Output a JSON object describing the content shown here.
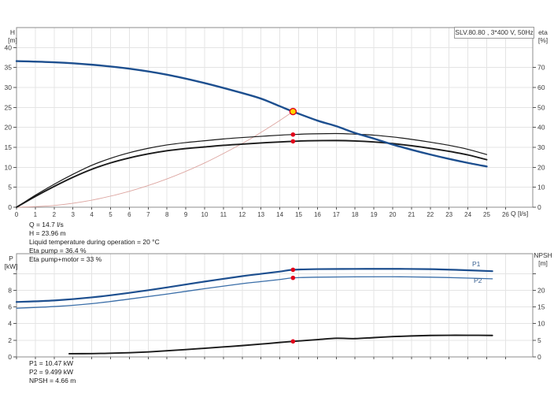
{
  "title_box": "SLV.80.80 , 3*400 V, 50Hz",
  "labels": {
    "h_axis": [
      "H",
      "[m]"
    ],
    "eta_axis": [
      "eta",
      "[%]"
    ],
    "q_axis": "Q [l/s]",
    "p_axis": [
      "P",
      "[kW]"
    ],
    "npsh_axis": [
      "NPSH",
      "[m]"
    ],
    "p1": "P1",
    "p2": "P2"
  },
  "info_top": [
    "Q = 14.7 l/s",
    "H = 23.96 m",
    "Liquid temperature during operation = 20 °C",
    "Eta pump = 36.4 %",
    "Eta pump+motor = 33 %"
  ],
  "info_bottom": [
    "P1 = 10.47 kW",
    "P2 = 9.499 kW",
    "NPSH = 4.66 m"
  ],
  "colors": {
    "pump_blue": "#1d4f8f",
    "secondary_blue": "#3a6ea8",
    "curve_black": "#1a1a1a",
    "system_red": "#dda5a0",
    "marker_red": "#e2001a",
    "duty_yellow": "#ffd500",
    "grid": "#e4e4e4",
    "border": "#8c8c8c"
  },
  "chart_data": [
    {
      "type": "line",
      "id": "hq-chart",
      "title": "SLV.80.80 , 3*400 V, 50Hz",
      "x": {
        "label": "Q [l/s]",
        "min": 0,
        "max": 26,
        "tick_step": 1,
        "show_tick_labels": true
      },
      "y_left": {
        "label": "H [m]",
        "min": 0,
        "max": 45,
        "ticks": [
          0,
          5,
          10,
          15,
          20,
          25,
          30,
          35,
          40
        ],
        "extra_ticks": []
      },
      "y_right": {
        "label": "eta [%]",
        "min": 0,
        "max": 90,
        "ticks": [
          0,
          10,
          20,
          30,
          40,
          50,
          60,
          70
        ],
        "extra_ticks": []
      },
      "series": [
        {
          "name": "system-curve",
          "axis": "left",
          "color": "#dda5a0",
          "width": 0.9,
          "points": [
            [
              0,
              0
            ],
            [
              2,
              0.44
            ],
            [
              4,
              1.77
            ],
            [
              6,
              3.99
            ],
            [
              8,
              7.09
            ],
            [
              10,
              11.09
            ],
            [
              12,
              15.97
            ],
            [
              13,
              18.74
            ],
            [
              14,
              21.73
            ],
            [
              14.7,
              23.96
            ]
          ]
        },
        {
          "name": "eta-pump-curve",
          "axis": "right",
          "color": "#1a1a1a",
          "width": 1.2,
          "points": [
            [
              0,
              0
            ],
            [
              1,
              6
            ],
            [
              2,
              11.5
            ],
            [
              3,
              16.5
            ],
            [
              4,
              21
            ],
            [
              5,
              24.5
            ],
            [
              6,
              27.3
            ],
            [
              7,
              29.5
            ],
            [
              8,
              31.2
            ],
            [
              9,
              32.4
            ],
            [
              10,
              33.3
            ],
            [
              11,
              34.2
            ],
            [
              12,
              34.9
            ],
            [
              13,
              35.5
            ],
            [
              14,
              36.1
            ],
            [
              14.7,
              36.4
            ],
            [
              15.5,
              36.7
            ],
            [
              17,
              36.9
            ],
            [
              18,
              36.6
            ],
            [
              19,
              36.1
            ],
            [
              20,
              35.2
            ],
            [
              21,
              34.0
            ],
            [
              22,
              32.6
            ],
            [
              23,
              31.0
            ],
            [
              24,
              29.0
            ],
            [
              25,
              26.4
            ]
          ]
        },
        {
          "name": "eta-pump-motor-curve",
          "axis": "right",
          "color": "#1a1a1a",
          "width": 1.9,
          "points": [
            [
              0,
              0
            ],
            [
              1,
              5.4
            ],
            [
              2,
              10.4
            ],
            [
              3,
              15.0
            ],
            [
              4,
              19.0
            ],
            [
              5,
              22.2
            ],
            [
              6,
              24.7
            ],
            [
              7,
              26.7
            ],
            [
              8,
              28.3
            ],
            [
              9,
              29.4
            ],
            [
              10,
              30.2
            ],
            [
              11,
              31.0
            ],
            [
              12,
              31.6
            ],
            [
              13,
              32.2
            ],
            [
              14,
              32.7
            ],
            [
              14.7,
              33.0
            ],
            [
              15.5,
              33.3
            ],
            [
              17,
              33.4
            ],
            [
              18,
              33.2
            ],
            [
              19,
              32.7
            ],
            [
              20,
              31.9
            ],
            [
              21,
              30.8
            ],
            [
              22,
              29.5
            ],
            [
              23,
              28.0
            ],
            [
              24,
              26.2
            ],
            [
              25,
              23.8
            ]
          ]
        },
        {
          "name": "pump-curve",
          "axis": "left",
          "color": "#1d4f8f",
          "width": 2.4,
          "points": [
            [
              0,
              36.6
            ],
            [
              2,
              36.3
            ],
            [
              4,
              35.7
            ],
            [
              6,
              34.7
            ],
            [
              8,
              33.2
            ],
            [
              10,
              31.1
            ],
            [
              12,
              28.6
            ],
            [
              13,
              27.2
            ],
            [
              14,
              25.3
            ],
            [
              14.7,
              23.96
            ],
            [
              16,
              21.7
            ],
            [
              17,
              20.3
            ],
            [
              18,
              18.6
            ],
            [
              19,
              17.2
            ],
            [
              20,
              15.7
            ],
            [
              21,
              14.4
            ],
            [
              22,
              13.2
            ],
            [
              23,
              12.1
            ],
            [
              24,
              11.1
            ],
            [
              25,
              10.2
            ]
          ]
        }
      ],
      "markers": [
        {
          "name": "duty-point",
          "axis": "left",
          "x": 14.7,
          "y": 23.96,
          "r": 4,
          "fill": "#ffd500",
          "stroke": "#e2001a"
        },
        {
          "name": "eta-pump-point",
          "axis": "right",
          "x": 14.7,
          "y": 36.4,
          "r": 2.8,
          "fill": "#e2001a",
          "stroke": "none"
        },
        {
          "name": "eta-pump-motor-point",
          "axis": "right",
          "x": 14.7,
          "y": 33,
          "r": 2.8,
          "fill": "#e2001a",
          "stroke": "none"
        }
      ]
    },
    {
      "type": "line",
      "id": "power-npsh-chart",
      "x": {
        "label": "",
        "min": 0,
        "max": 26,
        "tick_step": 1,
        "show_tick_labels": false
      },
      "y_left": {
        "label": "P [kW]",
        "min": 0,
        "max": 12.4,
        "ticks": [
          0,
          2,
          4,
          6,
          8
        ],
        "extra_ticks": [
          10
        ]
      },
      "y_right": {
        "label": "NPSH [m]",
        "min": 0,
        "max": 31,
        "ticks": [
          0,
          5,
          10,
          15,
          20
        ],
        "extra_ticks": [
          25
        ]
      },
      "series": [
        {
          "name": "p2-curve",
          "axis": "left",
          "color": "#3a6ea8",
          "width": 1.3,
          "points": [
            [
              0,
              5.85
            ],
            [
              2,
              6.05
            ],
            [
              4,
              6.4
            ],
            [
              6,
              6.95
            ],
            [
              8,
              7.55
            ],
            [
              10,
              8.2
            ],
            [
              12,
              8.8
            ],
            [
              13,
              9.05
            ],
            [
              14,
              9.3
            ],
            [
              14.7,
              9.499
            ],
            [
              16,
              9.58
            ],
            [
              18,
              9.62
            ],
            [
              20,
              9.63
            ],
            [
              22,
              9.58
            ],
            [
              23.5,
              9.5
            ],
            [
              25.3,
              9.38
            ]
          ]
        },
        {
          "name": "p1-curve",
          "axis": "left",
          "color": "#1d4f8f",
          "width": 2.2,
          "points": [
            [
              0,
              6.6
            ],
            [
              2,
              6.78
            ],
            [
              4,
              7.15
            ],
            [
              6,
              7.7
            ],
            [
              8,
              8.35
            ],
            [
              10,
              9.05
            ],
            [
              12,
              9.7
            ],
            [
              13,
              9.98
            ],
            [
              14,
              10.25
            ],
            [
              14.7,
              10.47
            ],
            [
              16,
              10.55
            ],
            [
              18,
              10.57
            ],
            [
              20,
              10.58
            ],
            [
              22,
              10.54
            ],
            [
              23.5,
              10.45
            ],
            [
              25.3,
              10.3
            ]
          ]
        },
        {
          "name": "npsh-curve",
          "axis": "right",
          "color": "#1a1a1a",
          "width": 1.9,
          "points": [
            [
              2.8,
              0.95
            ],
            [
              4,
              1.0
            ],
            [
              5,
              1.1
            ],
            [
              6,
              1.25
            ],
            [
              7,
              1.5
            ],
            [
              8,
              1.85
            ],
            [
              9,
              2.2
            ],
            [
              10,
              2.6
            ],
            [
              11,
              3.0
            ],
            [
              12,
              3.4
            ],
            [
              13,
              3.85
            ],
            [
              14,
              4.35
            ],
            [
              14.7,
              4.66
            ],
            [
              16,
              5.2
            ],
            [
              17,
              5.6
            ],
            [
              18,
              5.5
            ],
            [
              19,
              5.8
            ],
            [
              20,
              6.1
            ],
            [
              21,
              6.3
            ],
            [
              22,
              6.45
            ],
            [
              23,
              6.5
            ],
            [
              24,
              6.5
            ],
            [
              25.3,
              6.45
            ]
          ]
        }
      ],
      "markers": [
        {
          "name": "p1-point",
          "axis": "left",
          "x": 14.7,
          "y": 10.47,
          "r": 2.8,
          "fill": "#e2001a",
          "stroke": "none"
        },
        {
          "name": "p2-point",
          "axis": "left",
          "x": 14.7,
          "y": 9.499,
          "r": 2.8,
          "fill": "#e2001a",
          "stroke": "none"
        },
        {
          "name": "npsh-point",
          "axis": "right",
          "x": 14.7,
          "y": 4.66,
          "r": 2.8,
          "fill": "#e2001a",
          "stroke": "none"
        }
      ]
    }
  ]
}
